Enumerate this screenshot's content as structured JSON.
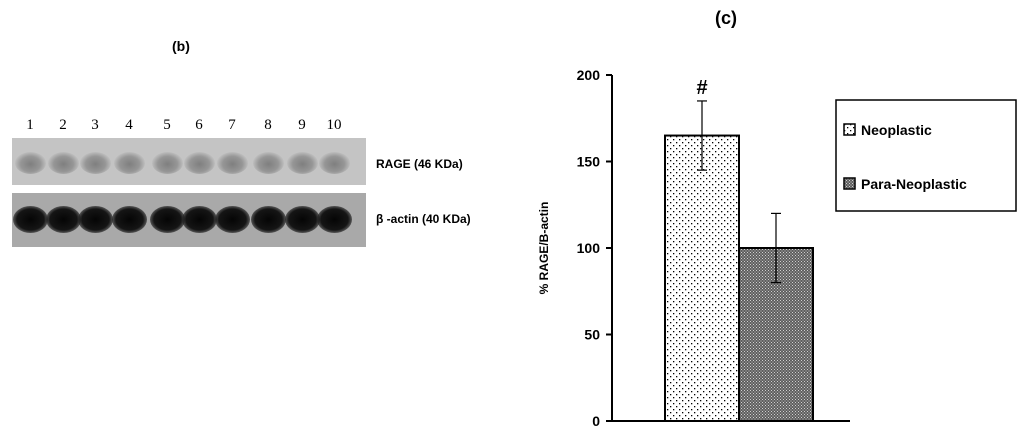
{
  "panel_b": {
    "label": "(b)",
    "lanes": [
      "1",
      "2",
      "3",
      "4",
      "5",
      "6",
      "7",
      "8",
      "9",
      "10"
    ],
    "rage_label": "RAGE (46 KDa)",
    "actin_label": "β -actin (40 KDa)"
  },
  "chart_data": {
    "type": "bar",
    "title": "(c)",
    "ylabel": "% RAGE/B-actin",
    "ylim": [
      0,
      200
    ],
    "yticks": [
      0,
      50,
      100,
      150,
      200
    ],
    "legend_position": "right",
    "series": [
      {
        "name": "Neoplastic",
        "value": 165,
        "error": 20,
        "annotation": "#",
        "pattern": "dots",
        "color": "#ffffff"
      },
      {
        "name": "Para-Neoplastic",
        "value": 100,
        "error": 20,
        "pattern": "crosshatch",
        "color": "#555555"
      }
    ]
  }
}
